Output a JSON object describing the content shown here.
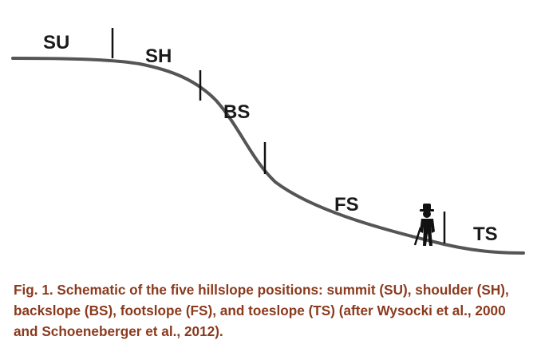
{
  "diagram": {
    "positions": [
      {
        "abbr": "SU"
      },
      {
        "abbr": "SH"
      },
      {
        "abbr": "BS"
      },
      {
        "abbr": "FS"
      },
      {
        "abbr": "TS"
      }
    ],
    "figure_icon": "person-standing-icon"
  },
  "caption": "Fig. 1. Schematic of the five hillslope positions: summit (SU), shoulder (SH), backslope (BS), footslope (FS), and toeslope (TS) (after Wysocki et al., 2000 and Schoeneberger et al., 2012).",
  "colors": {
    "line": "#555555",
    "label": "#1a1a1a",
    "caption": "#8b3a1e",
    "figure": "#111111"
  }
}
